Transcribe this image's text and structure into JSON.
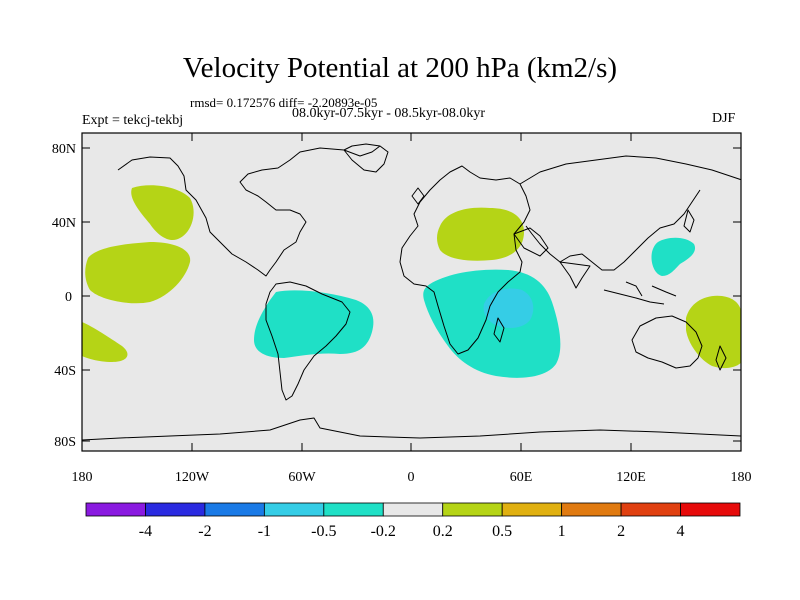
{
  "title": "Velocity Potential at 200 hPa (km2/s)",
  "stats": "rmsd= 0.172576 diff= -2.20893e-05",
  "period": "08.0kyr-07.5kyr - 08.5kyr-08.0kyr",
  "experiment": "Expt = tekcj-tekbj",
  "season": "DJF",
  "colors": {
    "ocean_neutral": "#e8e8e8",
    "positive_light": "#b5d416",
    "negative_light": "#1fe0c6",
    "negative_mid": "#35cde6"
  },
  "axes": {
    "lat_ticks": [
      "80N",
      "40N",
      "0",
      "40S",
      "80S"
    ],
    "lon_ticks": [
      "180",
      "120W",
      "60W",
      "0",
      "60E",
      "120E",
      "180"
    ]
  },
  "colorbar": {
    "labels": [
      "-4",
      "-2",
      "-1",
      "-0.5",
      "-0.2",
      "0.2",
      "0.5",
      "1",
      "2",
      "4"
    ],
    "colors": [
      "#8a1ae0",
      "#2a2ae0",
      "#1a7ae6",
      "#35cde6",
      "#1fe0c6",
      "#e8e8e8",
      "#b5d416",
      "#e0b010",
      "#e07a10",
      "#e04010",
      "#e60a0a"
    ]
  }
}
